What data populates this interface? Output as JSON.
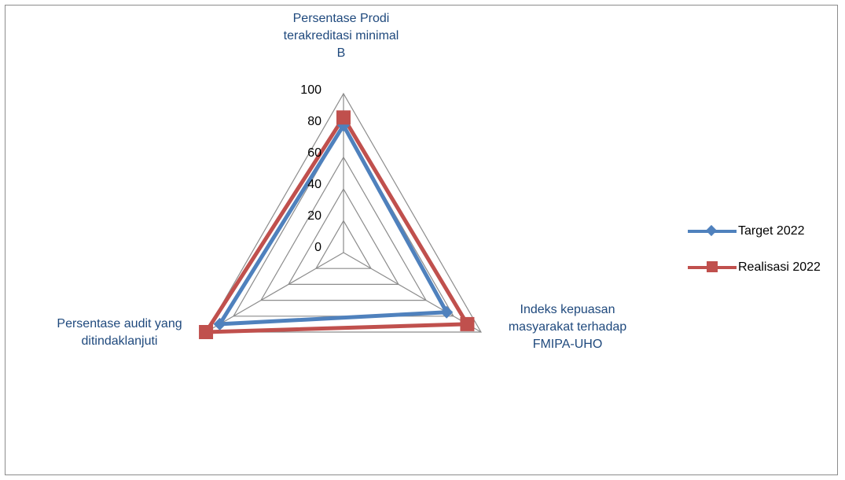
{
  "chart_data": {
    "type": "radar",
    "title": "",
    "axes": [
      "Persentase Prodi terakreditasi minimal B",
      "Indeks kepuasan masyarakat terhadap FMIPA-UHO",
      "Persentase audit yang ditindaklanjuti"
    ],
    "axis_label_lines": [
      [
        "Persentase Prodi",
        "terakreditasi minimal",
        "B"
      ],
      [
        "Indeks kepuasan",
        "masyarakat terhadap",
        "FMIPA-UHO"
      ],
      [
        "Persentase audit yang",
        "ditindaklanjuti"
      ]
    ],
    "rlim": [
      0,
      100
    ],
    "ticks": [
      0,
      20,
      40,
      60,
      80,
      100
    ],
    "tick_labels": [
      "0",
      "20",
      "40",
      "60",
      "80",
      "100"
    ],
    "grid": true,
    "legend_position": "right",
    "series": [
      {
        "name": "Target 2022",
        "values": [
          80,
          75,
          90
        ],
        "color": "#4f81bd",
        "marker": "diamond"
      },
      {
        "name": "Realisasi 2022",
        "values": [
          85,
          90,
          100
        ],
        "color": "#c0504d",
        "marker": "square"
      }
    ]
  }
}
